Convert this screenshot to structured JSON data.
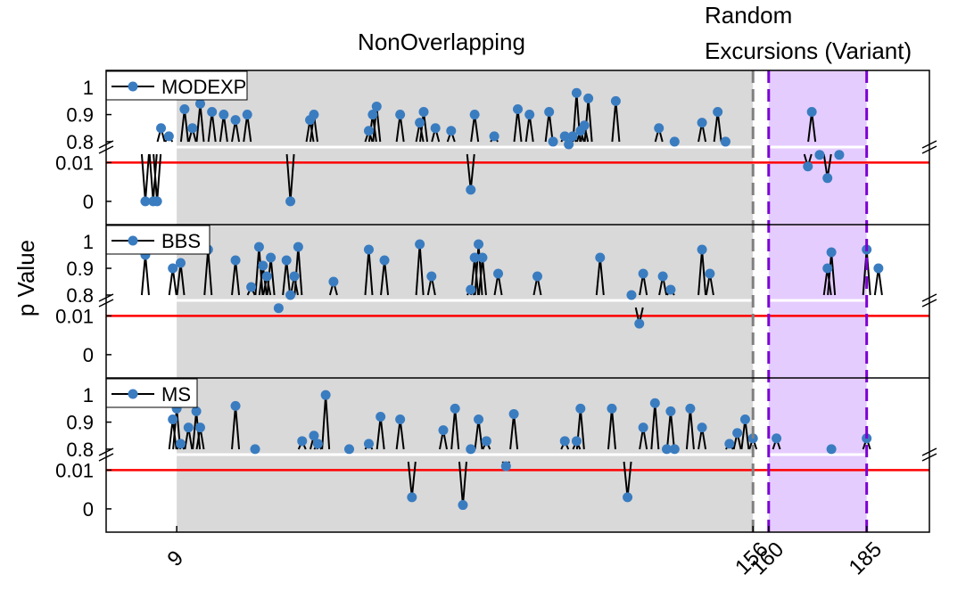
{
  "chart_data": {
    "type": "scatter",
    "ylabel": "p Value",
    "regions": [
      {
        "name": "NonOverlapping",
        "label": "NonOverlapping",
        "x_range": [
          9,
          156
        ],
        "color": "#d9d9d9"
      },
      {
        "name": "Random Excursions (Variant)",
        "label_lines": [
          "Random",
          "Excursions (Variant)"
        ],
        "x_range": [
          160,
          185
        ],
        "color": "#e5ccff"
      }
    ],
    "xlim": [
      -9,
      201
    ],
    "x_ticks": [
      {
        "value": 9,
        "label": "9"
      },
      {
        "value": 156,
        "label": "156"
      },
      {
        "value": 160,
        "label": "160"
      },
      {
        "value": 185,
        "label": "185"
      }
    ],
    "y_segments": {
      "upper": {
        "range": [
          0.78,
          1.05
        ],
        "ticks": [
          "0.8",
          "0.9",
          "1"
        ]
      },
      "lower": {
        "range": [
          -0.006,
          0.014
        ],
        "ticks": [
          "0",
          "0.01"
        ]
      }
    },
    "threshold": {
      "value": 0.01,
      "color": "#ff0000"
    },
    "point_color": "#3a7cc0",
    "line_color": "#000000",
    "gap_line_color": "#ffffff",
    "panels": [
      {
        "name": "MODEXP",
        "legend": "MODEXP",
        "points": [
          [
            1,
            0.0,
            "low"
          ],
          [
            3,
            0.0,
            "low"
          ],
          [
            4,
            0.0,
            "low"
          ],
          [
            5,
            0.85,
            "up"
          ],
          [
            7,
            0.82,
            "up"
          ],
          [
            11,
            0.92,
            "up"
          ],
          [
            13,
            0.85,
            "up"
          ],
          [
            15,
            0.94,
            "up"
          ],
          [
            18,
            0.91,
            "up"
          ],
          [
            21,
            0.9,
            "up"
          ],
          [
            24,
            0.88,
            "up"
          ],
          [
            27,
            0.9,
            "up"
          ],
          [
            38,
            0.0,
            "low"
          ],
          [
            43,
            0.88,
            "up"
          ],
          [
            44,
            0.9,
            "up"
          ],
          [
            58,
            0.84,
            "up"
          ],
          [
            59,
            0.9,
            "up"
          ],
          [
            60,
            0.93,
            "up"
          ],
          [
            66,
            0.9,
            "up"
          ],
          [
            71,
            0.87,
            "up"
          ],
          [
            72,
            0.91,
            "up"
          ],
          [
            75,
            0.85,
            "up"
          ],
          [
            79,
            0.84,
            "up"
          ],
          [
            84,
            0.003,
            "low"
          ],
          [
            85,
            0.9,
            "up"
          ],
          [
            90,
            0.82,
            "up"
          ],
          [
            96,
            0.92,
            "up"
          ],
          [
            99,
            0.9,
            "up"
          ],
          [
            104,
            0.91,
            "up"
          ],
          [
            105,
            0.8,
            "up"
          ],
          [
            108,
            0.82,
            "up"
          ],
          [
            109,
            0.79,
            "up"
          ],
          [
            110,
            0.82,
            "up"
          ],
          [
            111,
            0.98,
            "up"
          ],
          [
            112,
            0.84,
            "up"
          ],
          [
            113,
            0.86,
            "up"
          ],
          [
            114,
            0.96,
            "up"
          ],
          [
            121,
            0.95,
            "up"
          ],
          [
            132,
            0.85,
            "up"
          ],
          [
            136,
            0.8,
            "up"
          ],
          [
            143,
            0.87,
            "up"
          ],
          [
            147,
            0.91,
            "up"
          ],
          [
            149,
            0.8,
            "up"
          ],
          [
            170,
            0.009,
            "low"
          ],
          [
            171,
            0.91,
            "up"
          ],
          [
            173,
            0.012,
            "low"
          ],
          [
            175,
            0.006,
            "low"
          ],
          [
            178,
            0.012,
            "low"
          ]
        ]
      },
      {
        "name": "BBS",
        "legend": "BBS",
        "points": [
          [
            1,
            0.95,
            "up"
          ],
          [
            8,
            0.9,
            "up"
          ],
          [
            10,
            0.92,
            "up"
          ],
          [
            17,
            0.97,
            "up"
          ],
          [
            24,
            0.93,
            "up"
          ],
          [
            28,
            0.83,
            "up"
          ],
          [
            30,
            0.98,
            "up"
          ],
          [
            31,
            0.91,
            "up"
          ],
          [
            32,
            0.87,
            "up"
          ],
          [
            33,
            0.94,
            "up"
          ],
          [
            37,
            0.93,
            "up"
          ],
          [
            35,
            0.012,
            "low"
          ],
          [
            39,
            0.87,
            "up"
          ],
          [
            38,
            0.8,
            "up"
          ],
          [
            40,
            0.98,
            "up"
          ],
          [
            49,
            0.85,
            "up"
          ],
          [
            58,
            0.97,
            "up"
          ],
          [
            62,
            0.93,
            "up"
          ],
          [
            71,
            0.99,
            "up"
          ],
          [
            74,
            0.87,
            "up"
          ],
          [
            84,
            0.82,
            "up"
          ],
          [
            85,
            0.94,
            "up"
          ],
          [
            86,
            0.99,
            "up"
          ],
          [
            87,
            0.94,
            "up"
          ],
          [
            91,
            0.88,
            "up"
          ],
          [
            101,
            0.87,
            "up"
          ],
          [
            117,
            0.94,
            "up"
          ],
          [
            125,
            0.8,
            "up"
          ],
          [
            128,
            0.88,
            "up"
          ],
          [
            127,
            0.008,
            "low"
          ],
          [
            133,
            0.87,
            "up"
          ],
          [
            135,
            0.82,
            "up"
          ],
          [
            143,
            0.97,
            "up"
          ],
          [
            145,
            0.88,
            "up"
          ],
          [
            175,
            0.9,
            "up"
          ],
          [
            176,
            0.96,
            "up"
          ],
          [
            185,
            0.97,
            "up"
          ],
          [
            188,
            0.9,
            "up"
          ]
        ]
      },
      {
        "name": "MS",
        "legend": "MS",
        "points": [
          [
            8,
            0.91,
            "up"
          ],
          [
            9,
            0.95,
            "up"
          ],
          [
            10,
            0.82,
            "up"
          ],
          [
            12,
            0.88,
            "up"
          ],
          [
            14,
            0.94,
            "up"
          ],
          [
            15,
            0.88,
            "up"
          ],
          [
            24,
            0.96,
            "up"
          ],
          [
            29,
            0.8,
            "up"
          ],
          [
            41,
            0.83,
            "up"
          ],
          [
            44,
            0.85,
            "up"
          ],
          [
            45,
            0.82,
            "up"
          ],
          [
            47,
            1.0,
            "up"
          ],
          [
            53,
            0.8,
            "up"
          ],
          [
            58,
            0.82,
            "up"
          ],
          [
            61,
            0.92,
            "up"
          ],
          [
            66,
            0.91,
            "up"
          ],
          [
            69,
            0.003,
            "low"
          ],
          [
            77,
            0.87,
            "up"
          ],
          [
            80,
            0.95,
            "up"
          ],
          [
            82,
            0.001,
            "low"
          ],
          [
            84,
            0.8,
            "up"
          ],
          [
            86,
            0.91,
            "up"
          ],
          [
            88,
            0.83,
            "up"
          ],
          [
            93,
            0.011,
            "low"
          ],
          [
            95,
            0.93,
            "up"
          ],
          [
            108,
            0.83,
            "up"
          ],
          [
            111,
            0.83,
            "up"
          ],
          [
            112,
            0.95,
            "up"
          ],
          [
            120,
            0.95,
            "up"
          ],
          [
            124,
            0.003,
            "low"
          ],
          [
            128,
            0.88,
            "up"
          ],
          [
            131,
            0.97,
            "up"
          ],
          [
            134,
            0.8,
            "up"
          ],
          [
            135,
            0.94,
            "up"
          ],
          [
            136,
            0.8,
            "up"
          ],
          [
            140,
            0.95,
            "up"
          ],
          [
            143,
            0.88,
            "up"
          ],
          [
            150,
            0.82,
            "up"
          ],
          [
            152,
            0.86,
            "up"
          ],
          [
            154,
            0.91,
            "up"
          ],
          [
            156,
            0.84,
            "up"
          ],
          [
            162,
            0.84,
            "up"
          ],
          [
            176,
            0.8,
            "up"
          ],
          [
            185,
            0.84,
            "up"
          ]
        ]
      }
    ]
  }
}
